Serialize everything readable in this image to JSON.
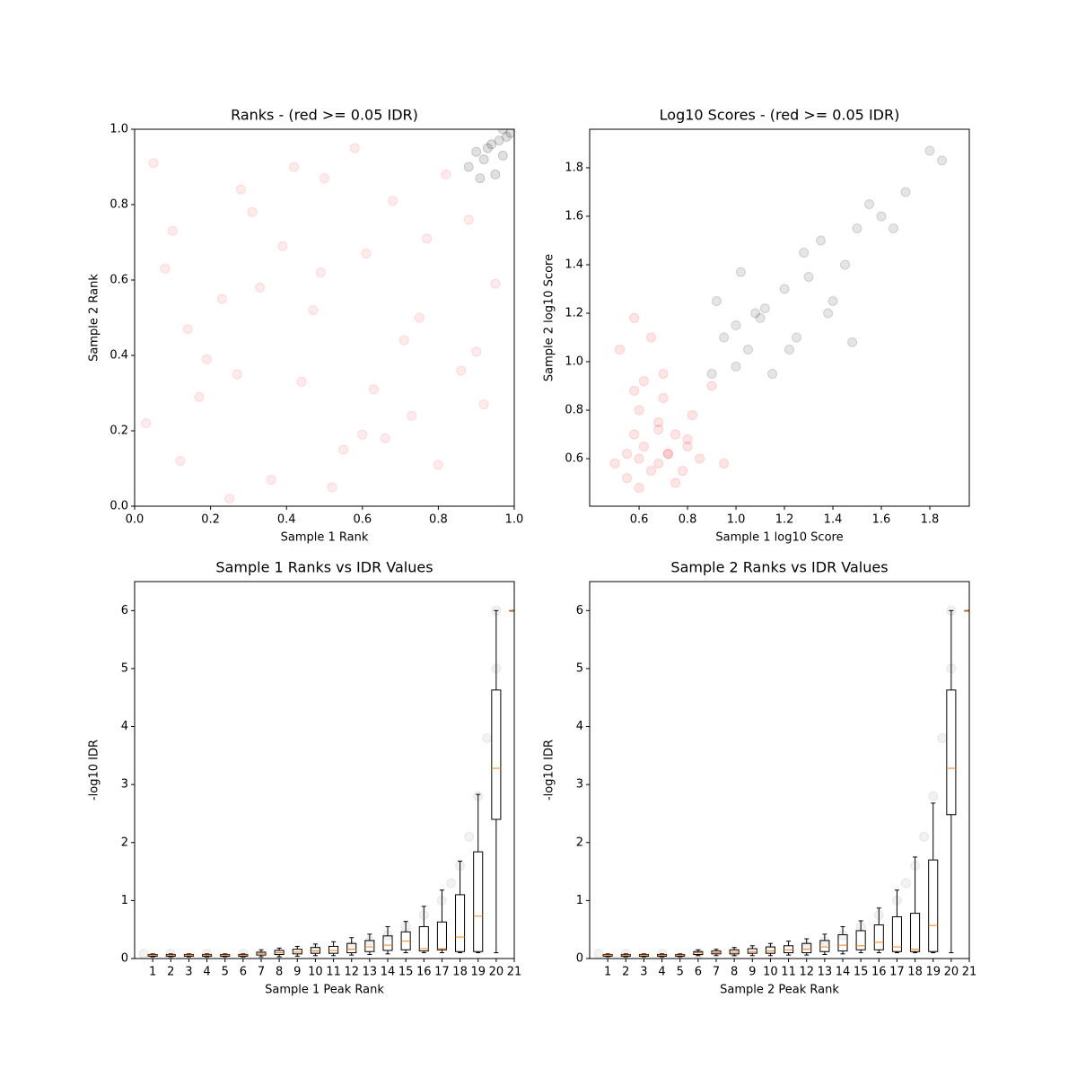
{
  "chart_data": [
    {
      "type": "scatter",
      "title": "Ranks - (red >= 0.05 IDR)",
      "xlabel": "Sample 1 Rank",
      "ylabel": "Sample 2 Rank",
      "xlim": [
        0,
        1
      ],
      "ylim": [
        0,
        1
      ],
      "xticks": [
        {
          "value": 0,
          "label": "0.0"
        },
        {
          "value": 0.2,
          "label": "0.2"
        },
        {
          "value": 0.4,
          "label": "0.4"
        },
        {
          "value": 0.6,
          "label": "0.6"
        },
        {
          "value": 0.8,
          "label": "0.8"
        },
        {
          "value": 1,
          "label": "1.0"
        }
      ],
      "yticks": [
        {
          "value": 0,
          "label": "0.0"
        },
        {
          "value": 0.2,
          "label": "0.2"
        },
        {
          "value": 0.4,
          "label": "0.4"
        },
        {
          "value": 0.6,
          "label": "0.6"
        },
        {
          "value": 0.8,
          "label": "0.8"
        },
        {
          "value": 1,
          "label": "1.0"
        }
      ],
      "series": [
        {
          "color": "#ff0000",
          "alpha": 0.08,
          "x": [
            0.05,
            0.12,
            0.23,
            0.31,
            0.44,
            0.52,
            0.61,
            0.73,
            0.82,
            0.9,
            0.08,
            0.17,
            0.28,
            0.36,
            0.47,
            0.58,
            0.66,
            0.77,
            0.86,
            0.95,
            0.03,
            0.14,
            0.25,
            0.39,
            0.5,
            0.63,
            0.71,
            0.8,
            0.88,
            0.19,
            0.33,
            0.42,
            0.55,
            0.68,
            0.75,
            0.92,
            0.1,
            0.27,
            0.49,
            0.6
          ],
          "y": [
            0.91,
            0.12,
            0.55,
            0.78,
            0.33,
            0.05,
            0.67,
            0.24,
            0.88,
            0.41,
            0.63,
            0.29,
            0.84,
            0.07,
            0.52,
            0.95,
            0.18,
            0.71,
            0.36,
            0.59,
            0.22,
            0.47,
            0.02,
            0.69,
            0.87,
            0.31,
            0.44,
            0.11,
            0.76,
            0.39,
            0.58,
            0.9,
            0.15,
            0.81,
            0.5,
            0.27,
            0.73,
            0.35,
            0.62,
            0.19
          ]
        },
        {
          "color": "#000000",
          "alpha": 0.12,
          "x": [
            0.88,
            0.9,
            0.92,
            0.94,
            0.95,
            0.96,
            0.97,
            0.98,
            0.99,
            0.93,
            0.91,
            0.97
          ],
          "y": [
            0.9,
            0.94,
            0.92,
            0.96,
            0.88,
            0.97,
            0.93,
            0.98,
            0.99,
            0.95,
            0.87,
            1.0
          ]
        }
      ]
    },
    {
      "type": "scatter",
      "title": "Log10 Scores - (red >= 0.05 IDR)",
      "xlabel": "Sample 1 log10 Score",
      "ylabel": "Sample 2 log10 Score",
      "xlim": [
        0.396,
        1.963
      ],
      "ylim": [
        0.404,
        1.959
      ],
      "xticks": [
        {
          "value": 0.6,
          "label": "0.6"
        },
        {
          "value": 0.8,
          "label": "0.8"
        },
        {
          "value": 1,
          "label": "1.0"
        },
        {
          "value": 1.2,
          "label": "1.2"
        },
        {
          "value": 1.4,
          "label": "1.4"
        },
        {
          "value": 1.6,
          "label": "1.6"
        },
        {
          "value": 1.8,
          "label": "1.8"
        }
      ],
      "yticks": [
        {
          "value": 0.6,
          "label": "0.6"
        },
        {
          "value": 0.8,
          "label": "0.8"
        },
        {
          "value": 1,
          "label": "1.0"
        },
        {
          "value": 1.2,
          "label": "1.2"
        },
        {
          "value": 1.4,
          "label": "1.4"
        },
        {
          "value": 1.6,
          "label": "1.6"
        },
        {
          "value": 1.8,
          "label": "1.8"
        }
      ],
      "series": [
        {
          "color": "#ff0000",
          "alpha": 0.1,
          "x": [
            0.5,
            0.55,
            0.55,
            0.58,
            0.6,
            0.6,
            0.62,
            0.65,
            0.68,
            0.68,
            0.7,
            0.72,
            0.75,
            0.78,
            0.8,
            0.82,
            0.85,
            0.9,
            0.95,
            0.52,
            0.58,
            0.6,
            0.65,
            0.7,
            0.75,
            0.8,
            0.58,
            0.62,
            0.68,
            0.72
          ],
          "y": [
            0.58,
            0.52,
            0.62,
            0.7,
            0.6,
            0.8,
            0.65,
            0.55,
            0.58,
            0.75,
            0.85,
            0.62,
            0.7,
            0.55,
            0.65,
            0.78,
            0.6,
            0.9,
            0.58,
            1.05,
            1.18,
            0.48,
            1.1,
            0.95,
            0.5,
            0.68,
            0.88,
            0.92,
            0.72,
            0.62
          ]
        },
        {
          "color": "#000000",
          "alpha": 0.1,
          "x": [
            0.9,
            0.95,
            1.0,
            1.05,
            1.08,
            1.1,
            1.15,
            1.2,
            1.25,
            1.3,
            1.35,
            1.4,
            1.45,
            1.5,
            1.55,
            1.6,
            1.65,
            1.7,
            1.8,
            1.85,
            1.0,
            1.12,
            1.22,
            1.38,
            1.48,
            0.92,
            1.02,
            1.28
          ],
          "y": [
            0.95,
            1.1,
            1.15,
            1.05,
            1.2,
            1.18,
            0.95,
            1.3,
            1.1,
            1.35,
            1.5,
            1.25,
            1.4,
            1.55,
            1.65,
            1.6,
            1.55,
            1.7,
            1.87,
            1.83,
            0.98,
            1.22,
            1.05,
            1.2,
            1.08,
            1.25,
            1.37,
            1.45
          ]
        }
      ]
    },
    {
      "type": "box",
      "title": "Sample 1 Ranks vs IDR Values",
      "xlabel": "Sample 1 Peak Rank",
      "ylabel": "-log10 IDR",
      "xlim": [
        0,
        21
      ],
      "ylim": [
        0,
        6.5
      ],
      "xticks": [
        1,
        2,
        3,
        4,
        5,
        6,
        7,
        8,
        9,
        10,
        11,
        12,
        13,
        14,
        15,
        16,
        17,
        18,
        19,
        20,
        21
      ],
      "yticks": [
        0,
        1,
        2,
        3,
        4,
        5,
        6
      ],
      "series": [
        {
          "color": "#000000",
          "alpha": 0.05,
          "x": [
            0.5,
            2,
            4,
            6,
            8,
            10,
            12,
            13,
            14,
            15,
            16,
            17,
            17.5,
            18,
            18.5,
            19,
            19.5,
            20,
            20
          ],
          "y": [
            0.08,
            0.08,
            0.08,
            0.08,
            0.1,
            0.15,
            0.22,
            0.3,
            0.4,
            0.55,
            0.75,
            1.0,
            1.3,
            1.6,
            2.1,
            2.8,
            3.8,
            5,
            6
          ]
        }
      ],
      "positions": [
        1,
        2,
        3,
        4,
        5,
        6,
        7,
        8,
        9,
        10,
        11,
        12,
        13,
        14,
        15,
        16,
        17,
        18,
        19,
        20,
        21
      ],
      "boxes": [
        {
          "whislo": 0.03,
          "q1": 0.04,
          "med": 0.06,
          "q3": 0.07,
          "whishi": 0.08
        },
        {
          "whislo": 0.03,
          "q1": 0.04,
          "med": 0.06,
          "q3": 0.07,
          "whishi": 0.08
        },
        {
          "whislo": 0.03,
          "q1": 0.04,
          "med": 0.06,
          "q3": 0.07,
          "whishi": 0.08
        },
        {
          "whislo": 0.03,
          "q1": 0.04,
          "med": 0.06,
          "q3": 0.07,
          "whishi": 0.08
        },
        {
          "whislo": 0.03,
          "q1": 0.04,
          "med": 0.06,
          "q3": 0.07,
          "whishi": 0.08
        },
        {
          "whislo": 0.03,
          "q1": 0.04,
          "med": 0.06,
          "q3": 0.07,
          "whishi": 0.08
        },
        {
          "whislo": 0.03,
          "q1": 0.06,
          "med": 0.09,
          "q3": 0.11,
          "whishi": 0.15
        },
        {
          "whislo": 0.03,
          "q1": 0.07,
          "med": 0.1,
          "q3": 0.14,
          "whishi": 0.18
        },
        {
          "whislo": 0.04,
          "q1": 0.08,
          "med": 0.11,
          "q3": 0.16,
          "whishi": 0.21
        },
        {
          "whislo": 0.05,
          "q1": 0.09,
          "med": 0.13,
          "q3": 0.19,
          "whishi": 0.25
        },
        {
          "whislo": 0.05,
          "q1": 0.09,
          "med": 0.14,
          "q3": 0.21,
          "whishi": 0.29
        },
        {
          "whislo": 0.06,
          "q1": 0.1,
          "med": 0.16,
          "q3": 0.26,
          "whishi": 0.36
        },
        {
          "whislo": 0.07,
          "q1": 0.12,
          "med": 0.2,
          "q3": 0.31,
          "whishi": 0.42
        },
        {
          "whislo": 0.08,
          "q1": 0.14,
          "med": 0.23,
          "q3": 0.39,
          "whishi": 0.55
        },
        {
          "whislo": 0.1,
          "q1": 0.15,
          "med": 0.3,
          "q3": 0.46,
          "whishi": 0.64
        },
        {
          "whislo": 0.1,
          "q1": 0.13,
          "med": 0.17,
          "q3": 0.55,
          "whishi": 0.9
        },
        {
          "whislo": 0.1,
          "q1": 0.15,
          "med": 0.17,
          "q3": 0.63,
          "whishi": 1.18
        },
        {
          "whislo": 0.1,
          "q1": 0.12,
          "med": 0.37,
          "q3": 1.1,
          "whishi": 1.68
        },
        {
          "whislo": 0.1,
          "q1": 0.12,
          "med": 0.73,
          "q3": 1.84,
          "whishi": 2.83
        },
        {
          "whislo": 0.1,
          "q1": 2.4,
          "med": 3.28,
          "q3": 4.63,
          "whishi": 6
        },
        {
          "whislo": 6,
          "q1": 6,
          "med": 6,
          "q3": 6,
          "whishi": 6
        }
      ]
    },
    {
      "type": "box",
      "title": "Sample 2 Ranks vs IDR Values",
      "xlabel": "Sample 2 Peak Rank",
      "ylabel": "-log10 IDR",
      "xlim": [
        0,
        21
      ],
      "ylim": [
        0,
        6.5
      ],
      "xticks": [
        1,
        2,
        3,
        4,
        5,
        6,
        7,
        8,
        9,
        10,
        11,
        12,
        13,
        14,
        15,
        16,
        17,
        18,
        19,
        20,
        21
      ],
      "yticks": [
        0,
        1,
        2,
        3,
        4,
        5,
        6
      ],
      "series": [
        {
          "color": "#000000",
          "alpha": 0.05,
          "x": [
            0.5,
            2,
            4,
            6,
            8,
            10,
            12,
            13,
            14,
            15,
            16,
            17,
            17.5,
            18,
            18.5,
            19,
            19.5,
            20,
            20
          ],
          "y": [
            0.08,
            0.08,
            0.08,
            0.08,
            0.1,
            0.15,
            0.22,
            0.3,
            0.4,
            0.55,
            0.75,
            1.0,
            1.3,
            1.6,
            2.1,
            2.8,
            3.8,
            5,
            6
          ]
        }
      ],
      "positions": [
        1,
        2,
        3,
        4,
        5,
        6,
        7,
        8,
        9,
        10,
        11,
        12,
        13,
        14,
        15,
        16,
        17,
        18,
        19,
        20,
        21
      ],
      "boxes": [
        {
          "whislo": 0.03,
          "q1": 0.04,
          "med": 0.06,
          "q3": 0.07,
          "whishi": 0.08
        },
        {
          "whislo": 0.03,
          "q1": 0.04,
          "med": 0.06,
          "q3": 0.07,
          "whishi": 0.08
        },
        {
          "whislo": 0.03,
          "q1": 0.04,
          "med": 0.06,
          "q3": 0.07,
          "whishi": 0.08
        },
        {
          "whislo": 0.03,
          "q1": 0.04,
          "med": 0.06,
          "q3": 0.07,
          "whishi": 0.08
        },
        {
          "whislo": 0.03,
          "q1": 0.04,
          "med": 0.06,
          "q3": 0.07,
          "whishi": 0.08
        },
        {
          "whislo": 0.05,
          "q1": 0.07,
          "med": 0.1,
          "q3": 0.12,
          "whishi": 0.15
        },
        {
          "whislo": 0.05,
          "q1": 0.08,
          "med": 0.1,
          "q3": 0.13,
          "whishi": 0.16
        },
        {
          "whislo": 0.05,
          "q1": 0.08,
          "med": 0.11,
          "q3": 0.15,
          "whishi": 0.19
        },
        {
          "whislo": 0.05,
          "q1": 0.09,
          "med": 0.12,
          "q3": 0.17,
          "whishi": 0.22
        },
        {
          "whislo": 0.05,
          "q1": 0.09,
          "med": 0.13,
          "q3": 0.2,
          "whishi": 0.26
        },
        {
          "whislo": 0.06,
          "q1": 0.1,
          "med": 0.15,
          "q3": 0.22,
          "whishi": 0.3
        },
        {
          "whislo": 0.06,
          "q1": 0.1,
          "med": 0.16,
          "q3": 0.26,
          "whishi": 0.34
        },
        {
          "whislo": 0.07,
          "q1": 0.12,
          "med": 0.2,
          "q3": 0.31,
          "whishi": 0.42
        },
        {
          "whislo": 0.08,
          "q1": 0.13,
          "med": 0.23,
          "q3": 0.41,
          "whishi": 0.55
        },
        {
          "whislo": 0.1,
          "q1": 0.15,
          "med": 0.22,
          "q3": 0.48,
          "whishi": 0.65
        },
        {
          "whislo": 0.1,
          "q1": 0.15,
          "med": 0.28,
          "q3": 0.58,
          "whishi": 0.87
        },
        {
          "whislo": 0.1,
          "q1": 0.12,
          "med": 0.2,
          "q3": 0.72,
          "whishi": 1.18
        },
        {
          "whislo": 0.1,
          "q1": 0.12,
          "med": 0.16,
          "q3": 0.78,
          "whishi": 1.75
        },
        {
          "whislo": 0.1,
          "q1": 0.12,
          "med": 0.57,
          "q3": 1.7,
          "whishi": 2.68
        },
        {
          "whislo": 0.1,
          "q1": 2.48,
          "med": 3.28,
          "q3": 4.63,
          "whishi": 6
        },
        {
          "whislo": 6,
          "q1": 6,
          "med": 6,
          "q3": 6,
          "whishi": 6
        }
      ]
    }
  ]
}
